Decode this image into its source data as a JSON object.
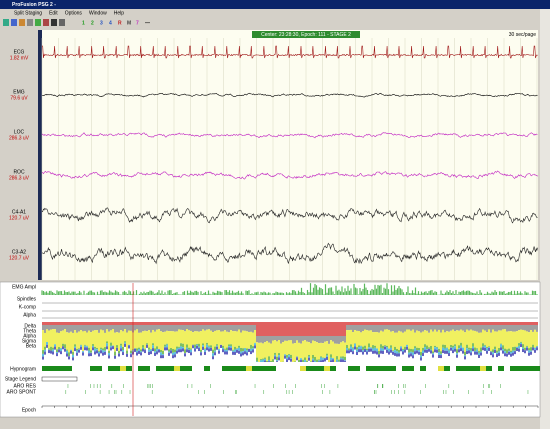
{
  "window": {
    "title": "ProFusion PSG 2 -",
    "menu": [
      "Split Staging",
      "Edit",
      "Options",
      "Window",
      "Help"
    ],
    "toolbar": [
      "1",
      "2",
      "3",
      "4",
      "R",
      "M",
      "7",
      "—"
    ],
    "status": "Center: 23:28:30, Epoch: 111 - STAGE 2",
    "page_span": "30 sec/page"
  },
  "channels": [
    {
      "name": "ECG",
      "scale": "1.82 mV"
    },
    {
      "name": "EMG",
      "scale": "79.6 uV"
    },
    {
      "name": "LOC",
      "scale": "286.3 uV"
    },
    {
      "name": "ROC",
      "scale": "286.3 uV"
    },
    {
      "name": "C4-A1",
      "scale": "120.7 uV"
    },
    {
      "name": "C3-A2",
      "scale": "120.7 uV"
    }
  ],
  "overview": {
    "labels": [
      "EMG Ampl",
      "Spindles",
      "K-comp",
      "Alpha",
      "Delta",
      "Theta",
      "Alpha",
      "Sigma",
      "Beta",
      "Hypnogram",
      "Stage Legend",
      "ARO RES",
      "ARO SPONT",
      "Epoch"
    ]
  }
}
